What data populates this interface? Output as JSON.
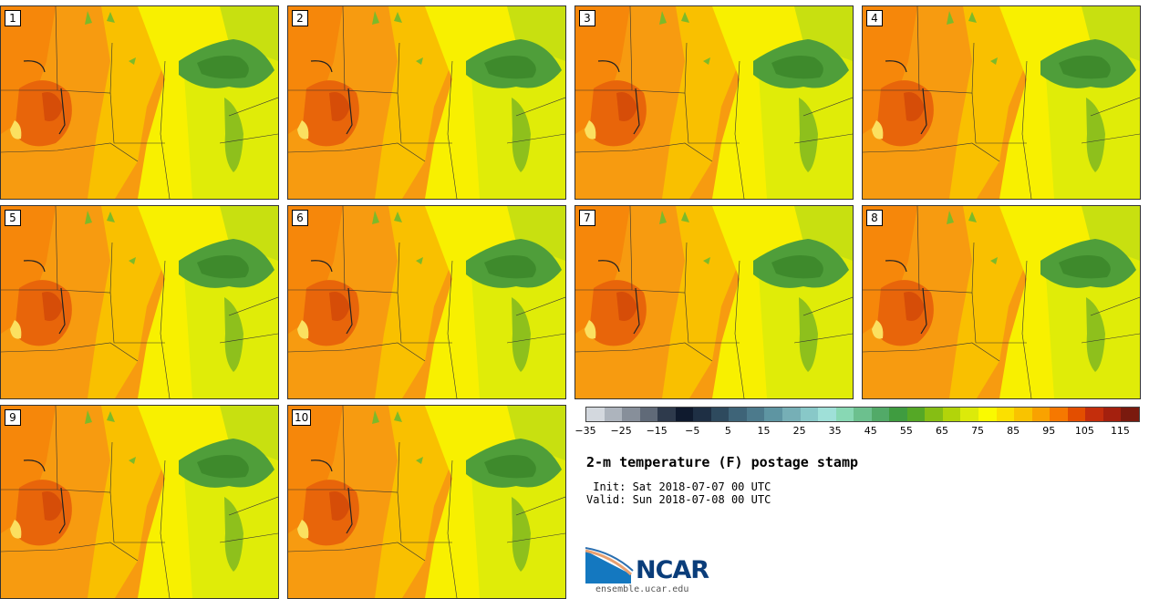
{
  "panels": [
    {
      "number": "1"
    },
    {
      "number": "2"
    },
    {
      "number": "3"
    },
    {
      "number": "4"
    },
    {
      "number": "5"
    },
    {
      "number": "6"
    },
    {
      "number": "7"
    },
    {
      "number": "8"
    },
    {
      "number": "9"
    },
    {
      "number": "10"
    }
  ],
  "colorbar": {
    "colors": [
      "#d3d8de",
      "#adb4bd",
      "#878f9a",
      "#606a78",
      "#2e3a4c",
      "#0f1a2e",
      "#1e2f44",
      "#2e4a5e",
      "#3e6478",
      "#4c7a8c",
      "#5e95a2",
      "#76afb6",
      "#88c8c8",
      "#9fe0d8",
      "#88d8b4",
      "#6cc08e",
      "#52aa68",
      "#3f9c40",
      "#55a826",
      "#86be14",
      "#b2d40a",
      "#dcea0a",
      "#fafa00",
      "#fbe000",
      "#f9c300",
      "#f9a200",
      "#f67800",
      "#e34e00",
      "#c42e0c",
      "#a4200e",
      "#7a1a0e"
    ],
    "ticks": [
      "−35",
      "−25",
      "−15",
      "−5",
      "5",
      "15",
      "25",
      "35",
      "45",
      "55",
      "65",
      "75",
      "85",
      "95",
      "105",
      "115"
    ]
  },
  "title": "2-m temperature (F) postage stamp",
  "init": " Init: Sat 2018-07-07 00 UTC",
  "valid": "Valid: Sun 2018-07-08 00 UTC",
  "logo": {
    "name": "NCAR",
    "site": "ensemble.ucar.edu"
  }
}
